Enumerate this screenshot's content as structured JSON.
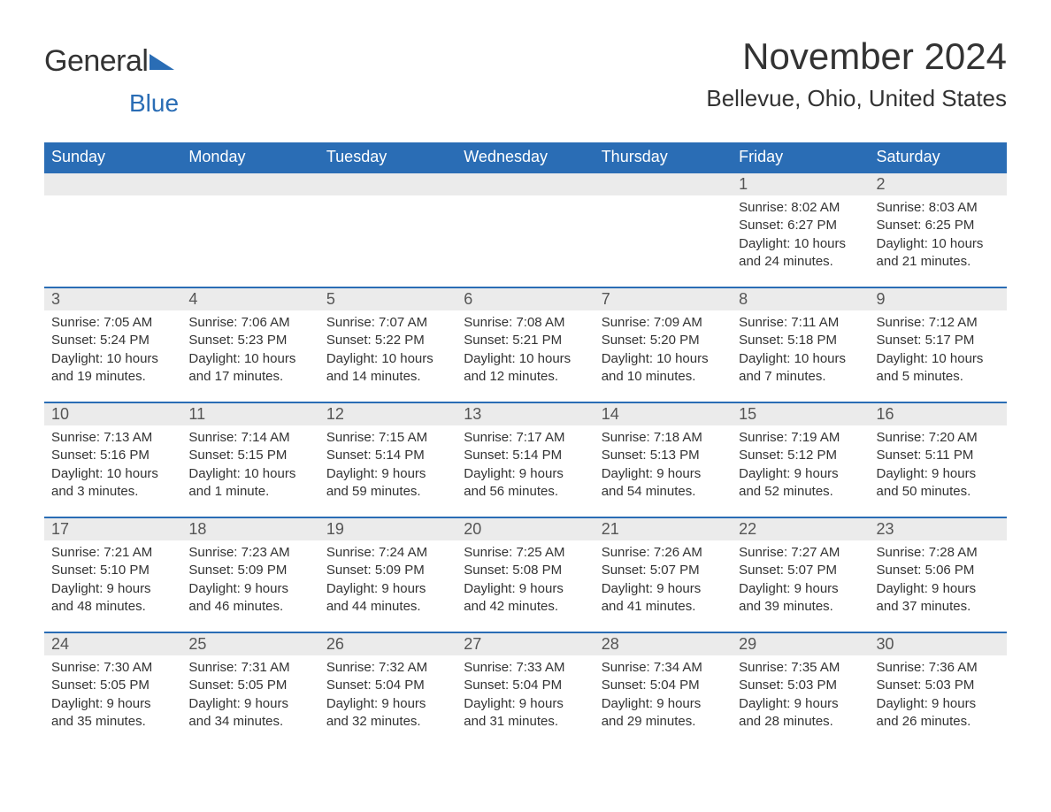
{
  "logo": {
    "general": "General",
    "blue": "Blue"
  },
  "header": {
    "month_year": "November 2024",
    "location": "Bellevue, Ohio, United States"
  },
  "colors": {
    "brand_blue": "#2a6db5",
    "header_row_bg": "#2a6db5",
    "day_num_bg": "#ebebeb",
    "text": "#333333",
    "background": "#ffffff"
  },
  "weekdays": [
    "Sunday",
    "Monday",
    "Tuesday",
    "Wednesday",
    "Thursday",
    "Friday",
    "Saturday"
  ],
  "weeks": [
    [
      null,
      null,
      null,
      null,
      null,
      {
        "num": "1",
        "sunrise": "Sunrise: 8:02 AM",
        "sunset": "Sunset: 6:27 PM",
        "daylight": "Daylight: 10 hours and 24 minutes."
      },
      {
        "num": "2",
        "sunrise": "Sunrise: 8:03 AM",
        "sunset": "Sunset: 6:25 PM",
        "daylight": "Daylight: 10 hours and 21 minutes."
      }
    ],
    [
      {
        "num": "3",
        "sunrise": "Sunrise: 7:05 AM",
        "sunset": "Sunset: 5:24 PM",
        "daylight": "Daylight: 10 hours and 19 minutes."
      },
      {
        "num": "4",
        "sunrise": "Sunrise: 7:06 AM",
        "sunset": "Sunset: 5:23 PM",
        "daylight": "Daylight: 10 hours and 17 minutes."
      },
      {
        "num": "5",
        "sunrise": "Sunrise: 7:07 AM",
        "sunset": "Sunset: 5:22 PM",
        "daylight": "Daylight: 10 hours and 14 minutes."
      },
      {
        "num": "6",
        "sunrise": "Sunrise: 7:08 AM",
        "sunset": "Sunset: 5:21 PM",
        "daylight": "Daylight: 10 hours and 12 minutes."
      },
      {
        "num": "7",
        "sunrise": "Sunrise: 7:09 AM",
        "sunset": "Sunset: 5:20 PM",
        "daylight": "Daylight: 10 hours and 10 minutes."
      },
      {
        "num": "8",
        "sunrise": "Sunrise: 7:11 AM",
        "sunset": "Sunset: 5:18 PM",
        "daylight": "Daylight: 10 hours and 7 minutes."
      },
      {
        "num": "9",
        "sunrise": "Sunrise: 7:12 AM",
        "sunset": "Sunset: 5:17 PM",
        "daylight": "Daylight: 10 hours and 5 minutes."
      }
    ],
    [
      {
        "num": "10",
        "sunrise": "Sunrise: 7:13 AM",
        "sunset": "Sunset: 5:16 PM",
        "daylight": "Daylight: 10 hours and 3 minutes."
      },
      {
        "num": "11",
        "sunrise": "Sunrise: 7:14 AM",
        "sunset": "Sunset: 5:15 PM",
        "daylight": "Daylight: 10 hours and 1 minute."
      },
      {
        "num": "12",
        "sunrise": "Sunrise: 7:15 AM",
        "sunset": "Sunset: 5:14 PM",
        "daylight": "Daylight: 9 hours and 59 minutes."
      },
      {
        "num": "13",
        "sunrise": "Sunrise: 7:17 AM",
        "sunset": "Sunset: 5:14 PM",
        "daylight": "Daylight: 9 hours and 56 minutes."
      },
      {
        "num": "14",
        "sunrise": "Sunrise: 7:18 AM",
        "sunset": "Sunset: 5:13 PM",
        "daylight": "Daylight: 9 hours and 54 minutes."
      },
      {
        "num": "15",
        "sunrise": "Sunrise: 7:19 AM",
        "sunset": "Sunset: 5:12 PM",
        "daylight": "Daylight: 9 hours and 52 minutes."
      },
      {
        "num": "16",
        "sunrise": "Sunrise: 7:20 AM",
        "sunset": "Sunset: 5:11 PM",
        "daylight": "Daylight: 9 hours and 50 minutes."
      }
    ],
    [
      {
        "num": "17",
        "sunrise": "Sunrise: 7:21 AM",
        "sunset": "Sunset: 5:10 PM",
        "daylight": "Daylight: 9 hours and 48 minutes."
      },
      {
        "num": "18",
        "sunrise": "Sunrise: 7:23 AM",
        "sunset": "Sunset: 5:09 PM",
        "daylight": "Daylight: 9 hours and 46 minutes."
      },
      {
        "num": "19",
        "sunrise": "Sunrise: 7:24 AM",
        "sunset": "Sunset: 5:09 PM",
        "daylight": "Daylight: 9 hours and 44 minutes."
      },
      {
        "num": "20",
        "sunrise": "Sunrise: 7:25 AM",
        "sunset": "Sunset: 5:08 PM",
        "daylight": "Daylight: 9 hours and 42 minutes."
      },
      {
        "num": "21",
        "sunrise": "Sunrise: 7:26 AM",
        "sunset": "Sunset: 5:07 PM",
        "daylight": "Daylight: 9 hours and 41 minutes."
      },
      {
        "num": "22",
        "sunrise": "Sunrise: 7:27 AM",
        "sunset": "Sunset: 5:07 PM",
        "daylight": "Daylight: 9 hours and 39 minutes."
      },
      {
        "num": "23",
        "sunrise": "Sunrise: 7:28 AM",
        "sunset": "Sunset: 5:06 PM",
        "daylight": "Daylight: 9 hours and 37 minutes."
      }
    ],
    [
      {
        "num": "24",
        "sunrise": "Sunrise: 7:30 AM",
        "sunset": "Sunset: 5:05 PM",
        "daylight": "Daylight: 9 hours and 35 minutes."
      },
      {
        "num": "25",
        "sunrise": "Sunrise: 7:31 AM",
        "sunset": "Sunset: 5:05 PM",
        "daylight": "Daylight: 9 hours and 34 minutes."
      },
      {
        "num": "26",
        "sunrise": "Sunrise: 7:32 AM",
        "sunset": "Sunset: 5:04 PM",
        "daylight": "Daylight: 9 hours and 32 minutes."
      },
      {
        "num": "27",
        "sunrise": "Sunrise: 7:33 AM",
        "sunset": "Sunset: 5:04 PM",
        "daylight": "Daylight: 9 hours and 31 minutes."
      },
      {
        "num": "28",
        "sunrise": "Sunrise: 7:34 AM",
        "sunset": "Sunset: 5:04 PM",
        "daylight": "Daylight: 9 hours and 29 minutes."
      },
      {
        "num": "29",
        "sunrise": "Sunrise: 7:35 AM",
        "sunset": "Sunset: 5:03 PM",
        "daylight": "Daylight: 9 hours and 28 minutes."
      },
      {
        "num": "30",
        "sunrise": "Sunrise: 7:36 AM",
        "sunset": "Sunset: 5:03 PM",
        "daylight": "Daylight: 9 hours and 26 minutes."
      }
    ]
  ]
}
